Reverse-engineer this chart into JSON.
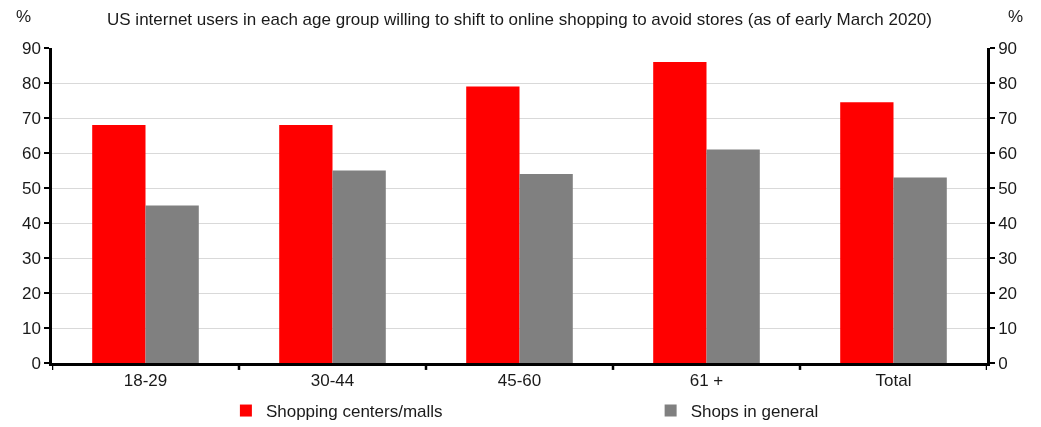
{
  "chart_data": {
    "type": "bar",
    "title": "US internet users in each age group willing to shift to online shopping to avoid stores (as of early March 2020)",
    "ylabel": "%",
    "y2label": "%",
    "categories": [
      "18-29",
      "30-44",
      "45-60",
      "61 +",
      "Total"
    ],
    "series": [
      {
        "name": "Shopping centers/malls",
        "color": "#ff0000",
        "values": [
          68,
          68,
          79,
          86,
          74.5
        ]
      },
      {
        "name": "Shops in general",
        "color": "#808080",
        "values": [
          45,
          55,
          54,
          61,
          53
        ]
      }
    ],
    "ylim": [
      0,
      90
    ],
    "yticks": [
      0,
      10,
      20,
      30,
      40,
      50,
      60,
      70,
      80,
      90
    ],
    "y2lim": [
      0,
      90
    ],
    "y2ticks": [
      0,
      10,
      20,
      30,
      40,
      50,
      60,
      70,
      80,
      90
    ],
    "grid": "y",
    "legend": "bottom"
  }
}
